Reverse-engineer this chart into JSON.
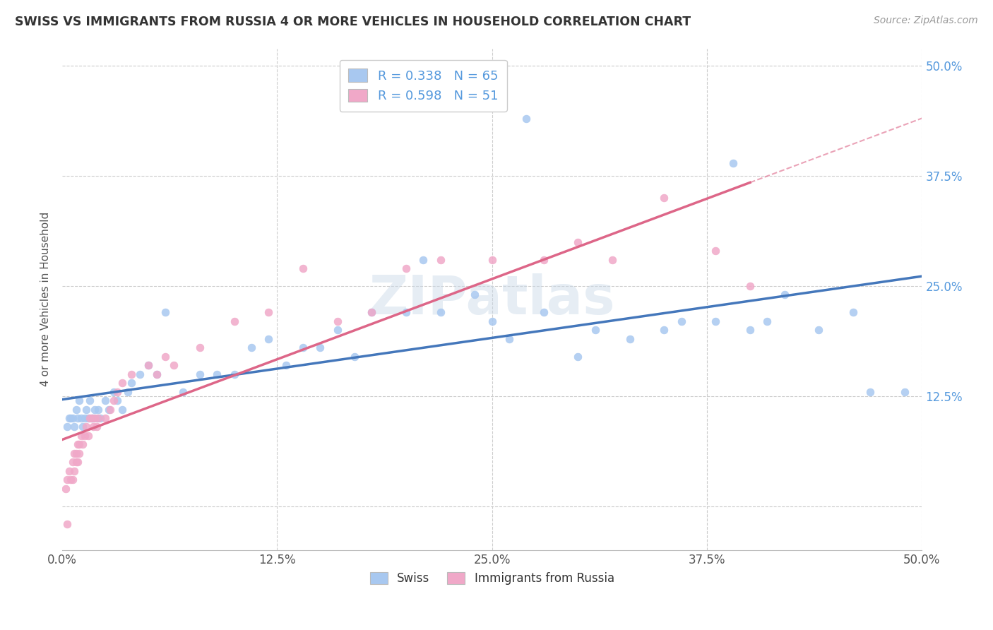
{
  "title": "SWISS VS IMMIGRANTS FROM RUSSIA 4 OR MORE VEHICLES IN HOUSEHOLD CORRELATION CHART",
  "source": "Source: ZipAtlas.com",
  "ylabel": "4 or more Vehicles in Household",
  "xlim": [
    0.0,
    0.5
  ],
  "ylim": [
    -0.05,
    0.52
  ],
  "xtick_labels": [
    "0.0%",
    "12.5%",
    "25.0%",
    "37.5%",
    "50.0%"
  ],
  "xtick_values": [
    0.0,
    0.125,
    0.25,
    0.375,
    0.5
  ],
  "ytick_values": [
    0.0,
    0.125,
    0.25,
    0.375,
    0.5
  ],
  "right_ytick_values": [
    0.5,
    0.375,
    0.25,
    0.125
  ],
  "right_ytick_labels": [
    "50.0%",
    "37.5%",
    "25.0%",
    "12.5%"
  ],
  "swiss_color": "#a8c8f0",
  "russia_color": "#f0a8c8",
  "swiss_line_color": "#4477bb",
  "russia_line_color": "#dd6688",
  "swiss_R": 0.338,
  "swiss_N": 65,
  "russia_R": 0.598,
  "russia_N": 51,
  "watermark": "ZIPatlas",
  "background_color": "#ffffff",
  "grid_color": "#cccccc",
  "right_axis_color": "#5599dd",
  "swiss_x": [
    0.003,
    0.004,
    0.005,
    0.006,
    0.007,
    0.008,
    0.009,
    0.01,
    0.011,
    0.012,
    0.013,
    0.014,
    0.015,
    0.016,
    0.017,
    0.018,
    0.019,
    0.02,
    0.021,
    0.022,
    0.025,
    0.027,
    0.03,
    0.032,
    0.035,
    0.038,
    0.04,
    0.045,
    0.05,
    0.055,
    0.06,
    0.07,
    0.08,
    0.09,
    0.1,
    0.11,
    0.12,
    0.13,
    0.14,
    0.15,
    0.16,
    0.17,
    0.18,
    0.2,
    0.22,
    0.24,
    0.25,
    0.26,
    0.28,
    0.3,
    0.31,
    0.33,
    0.35,
    0.36,
    0.38,
    0.4,
    0.41,
    0.42,
    0.44,
    0.46,
    0.47,
    0.49,
    0.27,
    0.21,
    0.39
  ],
  "swiss_y": [
    0.09,
    0.1,
    0.1,
    0.1,
    0.09,
    0.11,
    0.1,
    0.12,
    0.1,
    0.09,
    0.1,
    0.11,
    0.1,
    0.12,
    0.1,
    0.1,
    0.11,
    0.1,
    0.11,
    0.1,
    0.12,
    0.11,
    0.13,
    0.12,
    0.11,
    0.13,
    0.14,
    0.15,
    0.16,
    0.15,
    0.22,
    0.13,
    0.15,
    0.15,
    0.15,
    0.18,
    0.19,
    0.16,
    0.18,
    0.18,
    0.2,
    0.17,
    0.22,
    0.22,
    0.22,
    0.24,
    0.21,
    0.19,
    0.22,
    0.17,
    0.2,
    0.19,
    0.2,
    0.21,
    0.21,
    0.2,
    0.21,
    0.24,
    0.2,
    0.22,
    0.13,
    0.13,
    0.44,
    0.28,
    0.39
  ],
  "russia_x": [
    0.002,
    0.003,
    0.004,
    0.005,
    0.006,
    0.006,
    0.007,
    0.007,
    0.008,
    0.008,
    0.009,
    0.009,
    0.01,
    0.01,
    0.011,
    0.012,
    0.013,
    0.014,
    0.015,
    0.016,
    0.017,
    0.018,
    0.019,
    0.02,
    0.021,
    0.025,
    0.028,
    0.03,
    0.032,
    0.035,
    0.04,
    0.05,
    0.055,
    0.06,
    0.065,
    0.08,
    0.1,
    0.12,
    0.14,
    0.16,
    0.18,
    0.2,
    0.22,
    0.25,
    0.28,
    0.3,
    0.32,
    0.35,
    0.38,
    0.4,
    0.003
  ],
  "russia_y": [
    0.02,
    0.03,
    0.04,
    0.03,
    0.05,
    0.03,
    0.06,
    0.04,
    0.05,
    0.06,
    0.07,
    0.05,
    0.06,
    0.07,
    0.08,
    0.07,
    0.08,
    0.09,
    0.08,
    0.1,
    0.1,
    0.09,
    0.1,
    0.09,
    0.1,
    0.1,
    0.11,
    0.12,
    0.13,
    0.14,
    0.15,
    0.16,
    0.15,
    0.17,
    0.16,
    0.18,
    0.21,
    0.22,
    0.27,
    0.21,
    0.22,
    0.27,
    0.28,
    0.28,
    0.28,
    0.3,
    0.28,
    0.35,
    0.29,
    0.25,
    -0.02
  ]
}
